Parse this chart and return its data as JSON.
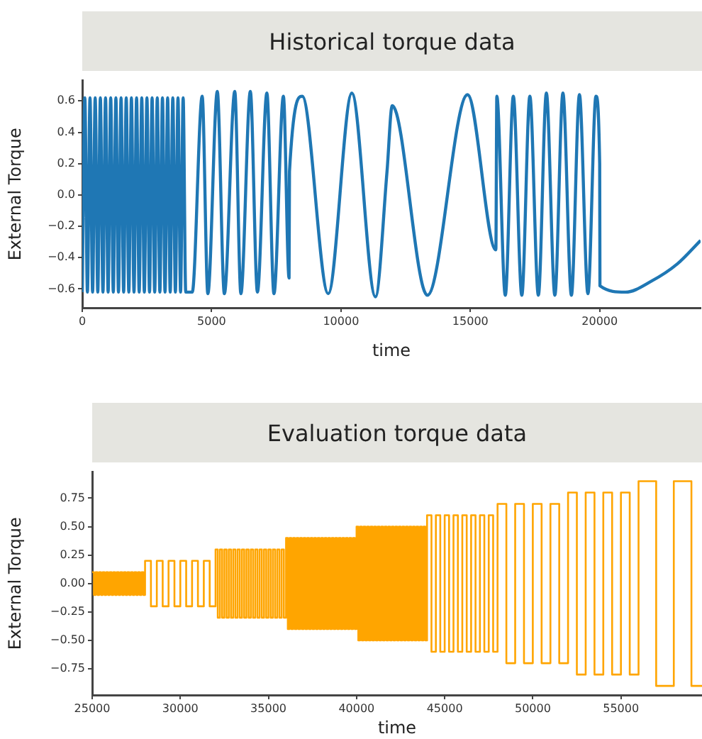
{
  "chart_data": [
    {
      "type": "line",
      "title": "Historical torque data",
      "xlabel": "time",
      "ylabel": "External Torque",
      "xlim": [
        0,
        23900
      ],
      "ylim": [
        -0.72,
        0.73
      ],
      "xticks": [
        0,
        5000,
        10000,
        15000,
        20000
      ],
      "yticks": [
        0.6,
        0.4,
        0.2,
        {
          "value": 0,
          "label": "0.0"
        },
        {
          "value": -0.2,
          "label": "−0.2"
        },
        {
          "value": -0.4,
          "label": "−0.4"
        },
        {
          "value": -0.6,
          "label": "−0.6"
        }
      ],
      "marker": "none",
      "series": [
        {
          "color": "#1f77b4",
          "x": [
            0,
            100,
            200,
            300,
            400,
            500,
            600,
            700,
            800,
            900,
            1000,
            1100,
            1200,
            1300,
            1400,
            1500,
            1600,
            1700,
            1800,
            1900,
            2000,
            2100,
            2200,
            2300,
            2400,
            2500,
            2600,
            2700,
            2800,
            2900,
            3000,
            3100,
            3200,
            3300,
            3400,
            3500,
            3600,
            3700,
            3800,
            3900,
            4000,
            4252,
            4636,
            4855,
            5220,
            5493,
            5895,
            6132,
            6497,
            6771,
            7136,
            7410,
            7775,
            7994,
            8010,
            8505,
            9508,
            10421,
            11333,
            11780,
            11980,
            13341,
            14892,
            15987,
            16024,
            16352,
            16662,
            16990,
            17301,
            17630,
            17940,
            18268,
            18579,
            18907,
            19217,
            19546,
            19856,
            20000,
            20010,
            21000,
            22000,
            23000,
            23900
          ],
          "values": [
            -0.62,
            0.62,
            -0.62,
            0.62,
            -0.62,
            0.62,
            -0.62,
            0.62,
            -0.62,
            0.62,
            -0.62,
            0.62,
            -0.62,
            0.62,
            -0.62,
            0.62,
            -0.62,
            0.62,
            -0.62,
            0.62,
            -0.62,
            0.62,
            -0.62,
            0.62,
            -0.62,
            0.62,
            -0.62,
            0.62,
            -0.62,
            0.62,
            -0.62,
            0.62,
            -0.62,
            0.62,
            -0.62,
            0.62,
            -0.62,
            0.62,
            -0.62,
            0.62,
            -0.62,
            -0.62,
            0.63,
            -0.63,
            0.66,
            -0.63,
            0.66,
            -0.63,
            0.66,
            -0.62,
            0.65,
            -0.63,
            0.63,
            -0.53,
            0.15,
            0.63,
            -0.63,
            0.65,
            -0.65,
            0.15,
            0.57,
            -0.64,
            0.64,
            -0.35,
            0.63,
            -0.64,
            0.63,
            -0.64,
            0.63,
            -0.64,
            0.65,
            -0.64,
            0.65,
            -0.64,
            0.64,
            -0.63,
            0.63,
            0.2,
            -0.58,
            -0.62,
            -0.55,
            -0.44,
            -0.29
          ]
        }
      ]
    },
    {
      "type": "step",
      "title": "Evaluation torque data",
      "xlabel": "time",
      "ylabel": "External Torque",
      "xlim": [
        25000,
        59600
      ],
      "ylim": [
        -0.98,
        0.98
      ],
      "xticks": [
        25000,
        30000,
        35000,
        40000,
        45000,
        50000,
        55000
      ],
      "yticks": [
        0.75,
        {
          "value": 0.5,
          "label": "0.50"
        },
        0.25,
        {
          "value": 0,
          "label": "0.00"
        },
        {
          "value": -0.25,
          "label": "−0.25"
        },
        {
          "value": -0.5,
          "label": "−0.50"
        },
        {
          "value": -0.75,
          "label": "−0.75"
        }
      ],
      "marker": "none",
      "series": [
        {
          "color": "#ffa500",
          "x": [
            25000,
            25100,
            25200,
            25300,
            25400,
            25500,
            25600,
            25700,
            25800,
            25900,
            26000,
            26100,
            26200,
            26300,
            26400,
            26500,
            26600,
            26700,
            26800,
            26900,
            27000,
            27100,
            27200,
            27300,
            27400,
            27500,
            27600,
            27700,
            27800,
            27900,
            28000,
            28333,
            28667,
            29000,
            29333,
            29667,
            30000,
            30333,
            30667,
            31000,
            31333,
            31667,
            32000,
            32125,
            32250,
            32375,
            32500,
            32625,
            32750,
            32875,
            33000,
            33125,
            33250,
            33375,
            33500,
            33625,
            33750,
            33875,
            34000,
            34125,
            34250,
            34375,
            34500,
            34625,
            34750,
            34875,
            35000,
            35125,
            35250,
            35375,
            35500,
            35625,
            35750,
            35875,
            36000,
            36100,
            36200,
            36300,
            36400,
            36500,
            36600,
            36700,
            36800,
            36900,
            37000,
            37100,
            37200,
            37300,
            37400,
            37500,
            37600,
            37700,
            37800,
            37900,
            38000,
            38100,
            38200,
            38300,
            38400,
            38500,
            38600,
            38700,
            38800,
            38900,
            39000,
            39100,
            39200,
            39300,
            39400,
            39500,
            39600,
            39700,
            39800,
            39900,
            40000,
            40100,
            40200,
            40300,
            40400,
            40500,
            40600,
            40700,
            40800,
            40900,
            41000,
            41100,
            41200,
            41300,
            41400,
            41500,
            41600,
            41700,
            41800,
            41900,
            42000,
            42100,
            42200,
            42300,
            42400,
            42500,
            42600,
            42700,
            42800,
            42900,
            43000,
            43100,
            43200,
            43300,
            43400,
            43500,
            43600,
            43700,
            43800,
            43900,
            44000,
            44250,
            44500,
            44750,
            45000,
            45250,
            45500,
            45750,
            46000,
            46250,
            46500,
            46750,
            47000,
            47250,
            47500,
            47750,
            48000,
            48500,
            49000,
            49500,
            50000,
            50500,
            51000,
            51500,
            52000,
            52500,
            53000,
            53500,
            54000,
            54500,
            55000,
            55500,
            56000,
            57000,
            58000,
            59000,
            59600
          ],
          "values": [
            0.1,
            -0.1,
            0.1,
            -0.1,
            0.1,
            -0.1,
            0.1,
            -0.1,
            0.1,
            -0.1,
            0.1,
            -0.1,
            0.1,
            -0.1,
            0.1,
            -0.1,
            0.1,
            -0.1,
            0.1,
            -0.1,
            0.1,
            -0.1,
            0.1,
            -0.1,
            0.1,
            -0.1,
            0.1,
            -0.1,
            0.1,
            -0.1,
            0.2,
            -0.2,
            0.2,
            -0.2,
            0.2,
            -0.2,
            0.2,
            -0.2,
            0.2,
            -0.2,
            0.2,
            -0.2,
            0.3,
            -0.3,
            0.3,
            -0.3,
            0.3,
            -0.3,
            0.3,
            -0.3,
            0.3,
            -0.3,
            0.3,
            -0.3,
            0.3,
            -0.3,
            0.3,
            -0.3,
            0.3,
            -0.3,
            0.3,
            -0.3,
            0.3,
            -0.3,
            0.3,
            -0.3,
            0.3,
            -0.3,
            0.3,
            -0.3,
            0.3,
            -0.3,
            0.3,
            -0.3,
            0.4,
            -0.4,
            0.4,
            -0.4,
            0.4,
            -0.4,
            0.4,
            -0.4,
            0.4,
            -0.4,
            0.4,
            -0.4,
            0.4,
            -0.4,
            0.4,
            -0.4,
            0.4,
            -0.4,
            0.4,
            -0.4,
            0.4,
            -0.4,
            0.4,
            -0.4,
            0.4,
            -0.4,
            0.4,
            -0.4,
            0.4,
            -0.4,
            0.4,
            -0.4,
            0.4,
            -0.4,
            0.4,
            -0.4,
            0.4,
            -0.4,
            0.4,
            -0.4,
            0.5,
            -0.5,
            0.5,
            -0.5,
            0.5,
            -0.5,
            0.5,
            -0.5,
            0.5,
            -0.5,
            0.5,
            -0.5,
            0.5,
            -0.5,
            0.5,
            -0.5,
            0.5,
            -0.5,
            0.5,
            -0.5,
            0.5,
            -0.5,
            0.5,
            -0.5,
            0.5,
            -0.5,
            0.5,
            -0.5,
            0.5,
            -0.5,
            0.5,
            -0.5,
            0.5,
            -0.5,
            0.5,
            -0.5,
            0.5,
            -0.5,
            0.5,
            -0.5,
            0.6,
            -0.6,
            0.6,
            -0.6,
            0.6,
            -0.6,
            0.6,
            -0.6,
            0.6,
            -0.6,
            0.6,
            -0.6,
            0.6,
            -0.6,
            0.6,
            -0.6,
            0.7,
            -0.7,
            0.7,
            -0.7,
            0.7,
            -0.7,
            0.7,
            -0.7,
            0.8,
            -0.8,
            0.8,
            -0.8,
            0.8,
            -0.8,
            0.8,
            -0.8,
            0.9,
            -0.9,
            0.9,
            -0.9,
            -0.9
          ]
        }
      ]
    }
  ]
}
